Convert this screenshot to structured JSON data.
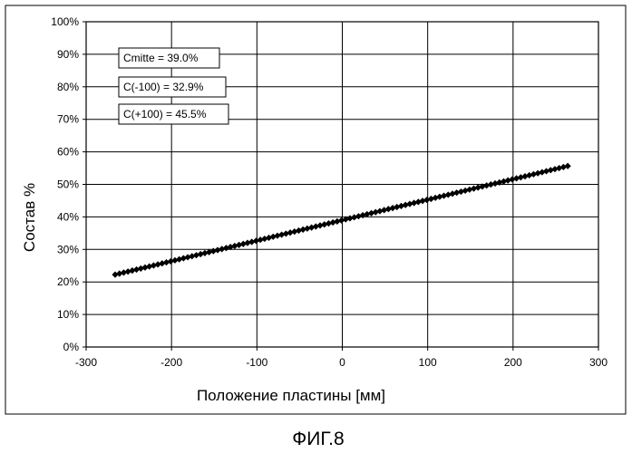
{
  "figure_caption": "ФИГ.8",
  "chart_data": {
    "type": "line",
    "xlabel": "Положение пластины [мм]",
    "ylabel": "Состав %",
    "xlim": [
      -300,
      300
    ],
    "ylim": [
      0,
      100
    ],
    "x_ticks": [
      -300,
      -200,
      -100,
      0,
      100,
      200,
      300
    ],
    "x_tick_labels": [
      "-300",
      "-200",
      "-100",
      "0",
      "100",
      "200",
      "300"
    ],
    "y_ticks": [
      0,
      10,
      20,
      30,
      40,
      50,
      60,
      70,
      80,
      90,
      100
    ],
    "y_tick_labels": [
      "0%",
      "10%",
      "20%",
      "30%",
      "40%",
      "50%",
      "60%",
      "70%",
      "80%",
      "90%",
      "100%"
    ],
    "grid": true,
    "legend": "none",
    "series": [
      {
        "marker": "diamond",
        "color": "#000000",
        "x_start": -266,
        "x_end": 264,
        "x_step": 5,
        "fit": {
          "intercept": 39.0,
          "slope": 0.063
        }
      }
    ],
    "annotations": [
      {
        "text": "Cmitte = 39.0%"
      },
      {
        "text": "C(-100) = 32.9%"
      },
      {
        "text": "C(+100) = 45.5%"
      }
    ]
  }
}
